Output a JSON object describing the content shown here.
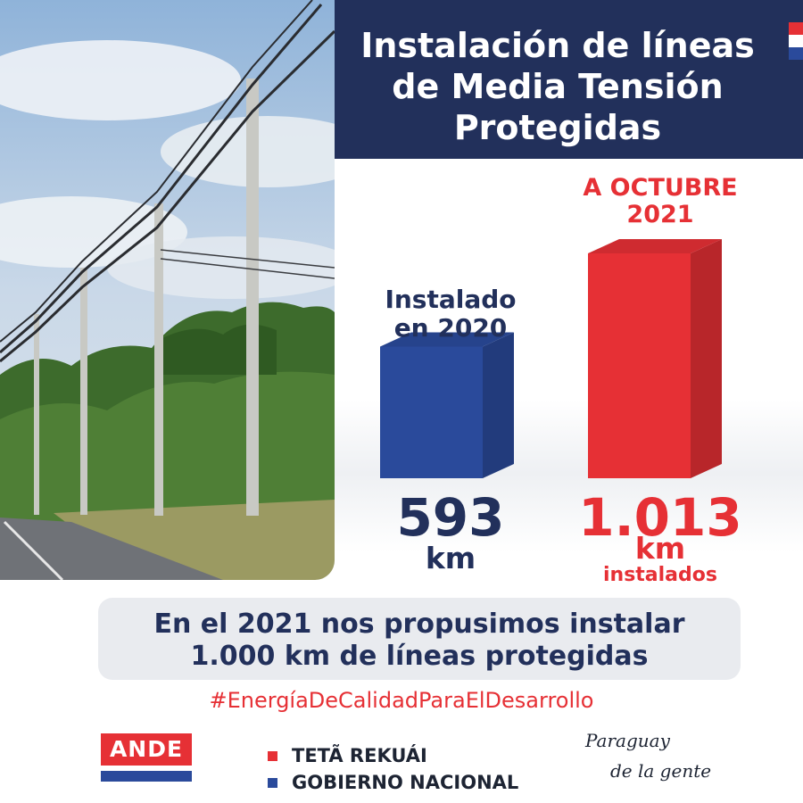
{
  "header": {
    "title": "Instalación de líneas\nde Media Tensión\nProtegidas"
  },
  "colors": {
    "navy": "#22305b",
    "blue_bar": "#2a4a9b",
    "red": "#e63035",
    "message_bg": "#e9ebef"
  },
  "photo": {
    "icon": "power-lines-photo"
  },
  "chart_data": {
    "type": "bar",
    "categories": [
      "Instalado\nen 2020",
      "A OCTUBRE\n2021"
    ],
    "values": [
      593,
      1013
    ],
    "value_labels": [
      "593",
      "1.013"
    ],
    "unit": "km",
    "value_suffix": [
      "",
      "instalados"
    ],
    "series_colors": [
      "#2a4a9b",
      "#e63035"
    ],
    "ylim": [
      0,
      1013
    ],
    "grid": false
  },
  "message": "En el 2021 nos propusimos instalar\n1.000 km de líneas protegidas",
  "hashtag": "#EnergíaDeCalidadParaElDesarrollo",
  "footer": {
    "ande": "ANDE",
    "tag_line_1": "TETÃ REKUÁI",
    "tag_line_2": "GOBIERNO NACIONAL",
    "slogan_line_1": "Paraguay",
    "slogan_line_2": "de la gente"
  }
}
